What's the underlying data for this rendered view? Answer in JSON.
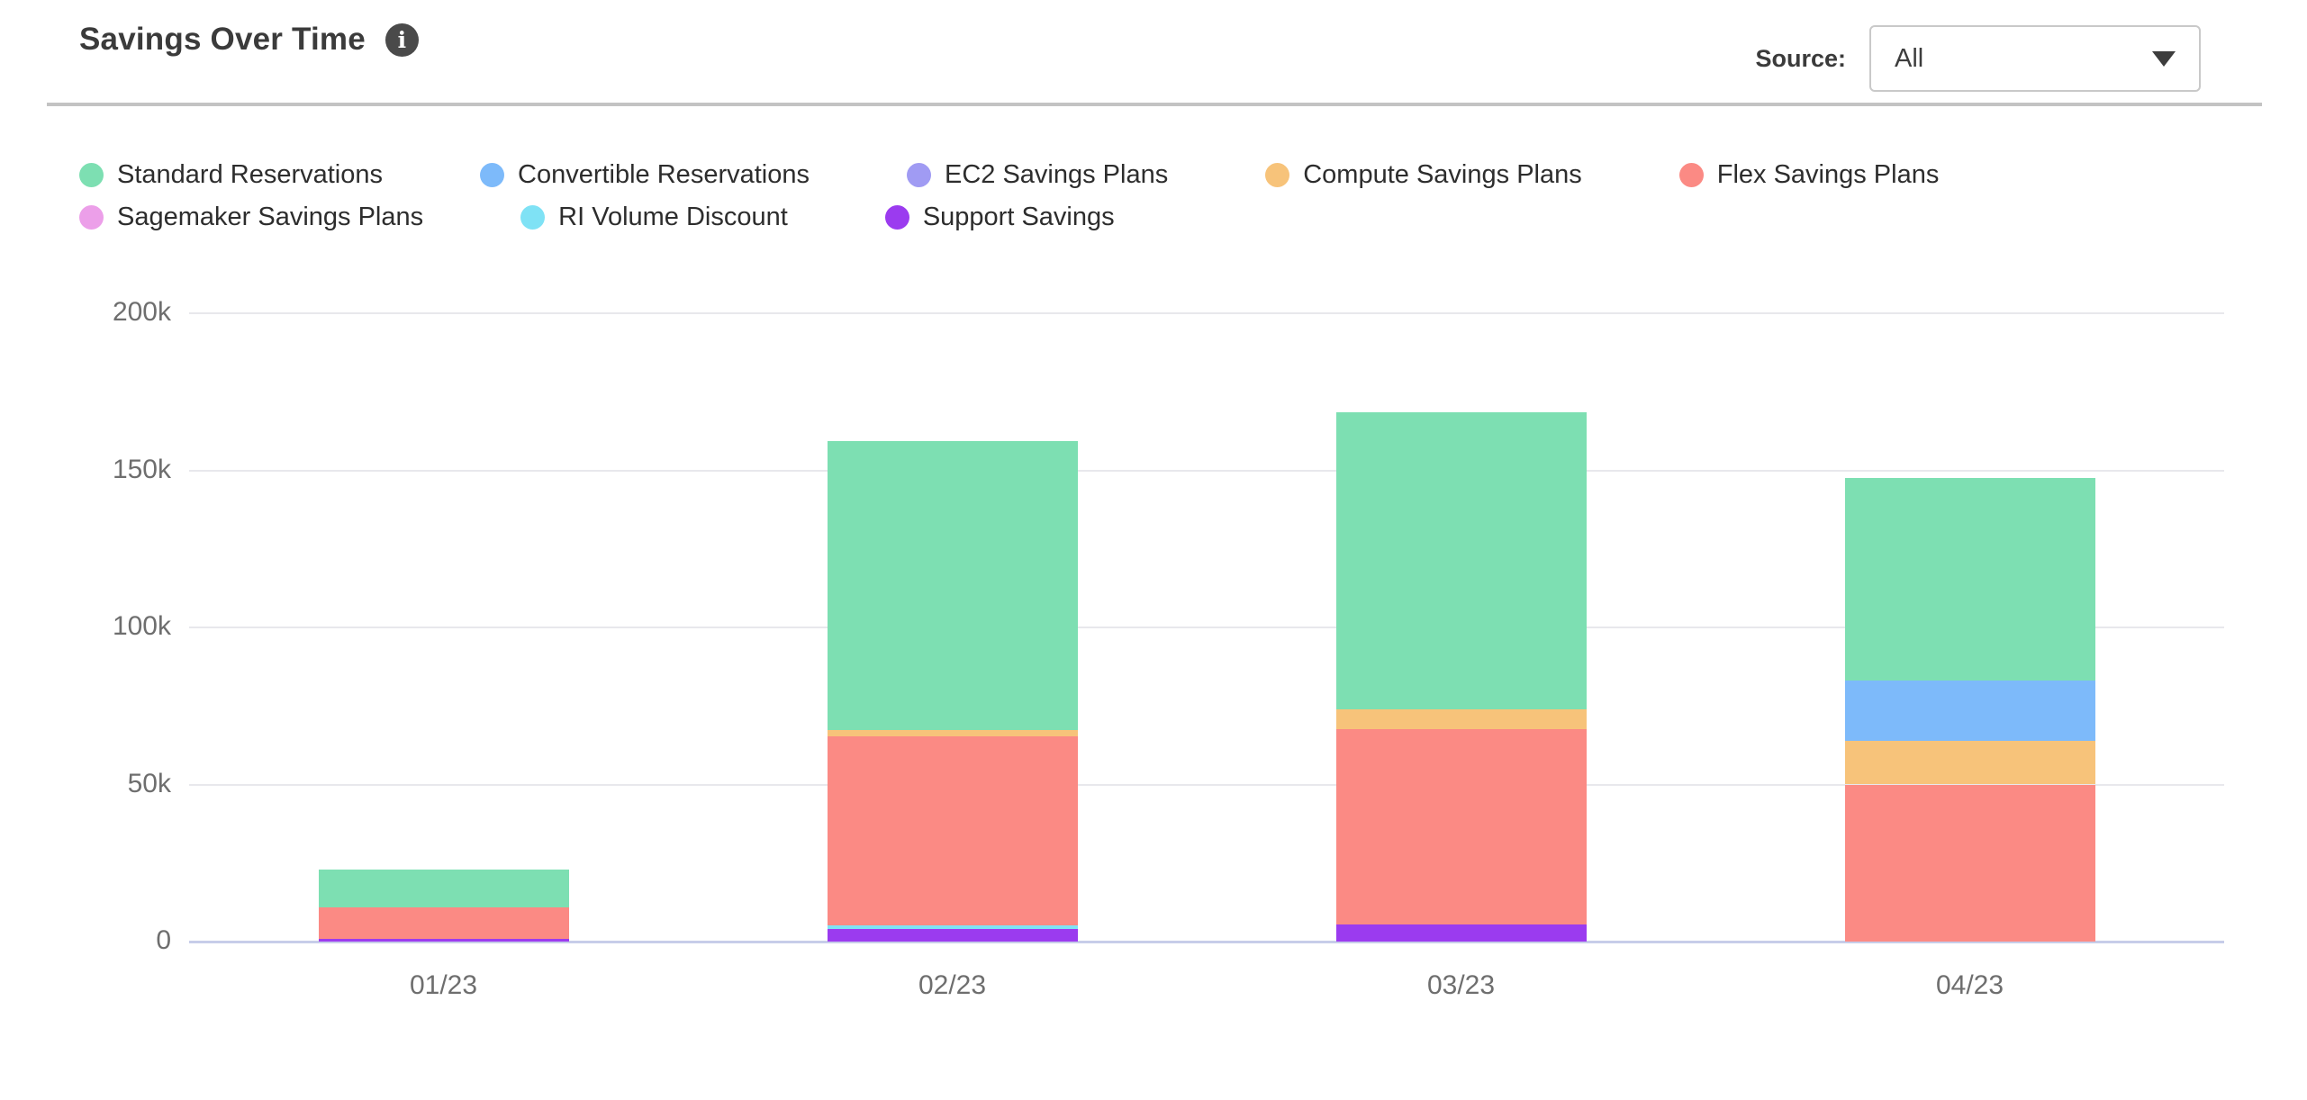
{
  "header": {
    "title": "Savings Over Time",
    "info_icon": "info-icon",
    "source_label": "Source:",
    "source_value": "All"
  },
  "chart_data": {
    "type": "bar",
    "stacked": true,
    "title": "Savings Over Time",
    "categories": [
      "01/23",
      "02/23",
      "03/23",
      "04/23"
    ],
    "series": [
      {
        "name": "Standard Reservations",
        "color": "#7ddfb2",
        "legend_row": 1,
        "values": [
          12000,
          92000,
          94500,
          64500
        ]
      },
      {
        "name": "Convertible Reservations",
        "color": "#7dbafa",
        "legend_row": 1,
        "values": [
          0,
          0,
          0,
          19000
        ]
      },
      {
        "name": "EC2 Savings Plans",
        "color": "#a09bf3",
        "legend_row": 1,
        "values": [
          0,
          0,
          0,
          0
        ]
      },
      {
        "name": "Compute Savings Plans",
        "color": "#f7c37a",
        "legend_row": 1,
        "values": [
          0,
          2000,
          6500,
          14000
        ]
      },
      {
        "name": "Flex Savings Plans",
        "color": "#fb8a84",
        "legend_row": 1,
        "values": [
          10000,
          60000,
          62000,
          50000
        ]
      },
      {
        "name": "Sagemaker Savings Plans",
        "color": "#ec9fe9",
        "legend_row": 2,
        "values": [
          0,
          0,
          0,
          0
        ]
      },
      {
        "name": "RI Volume Discount",
        "color": "#7fe2f5",
        "legend_row": 2,
        "values": [
          0,
          1200,
          0,
          0
        ]
      },
      {
        "name": "Support Savings",
        "color": "#9b3bef",
        "legend_row": 2,
        "values": [
          1000,
          4000,
          5500,
          0
        ]
      }
    ],
    "stack_note": "segments stack bottom-to-top in reverse legend order",
    "y_ticks": [
      {
        "value": 200000,
        "label": "200k"
      },
      {
        "value": 150000,
        "label": "150k"
      },
      {
        "value": 100000,
        "label": "100k"
      },
      {
        "value": 50000,
        "label": "50k"
      },
      {
        "value": 0,
        "label": "0"
      }
    ],
    "ylim": [
      0,
      200000
    ],
    "xlabel": "",
    "ylabel": "",
    "grid": true,
    "legend_position": "top"
  },
  "colors": {
    "baseline_axis": "#c7cde9",
    "gridline": "#e8e8ec",
    "tick_label": "#6e6e6e",
    "heading_text": "#3b3b3b",
    "info_badge_bg": "#4a4a4a"
  }
}
